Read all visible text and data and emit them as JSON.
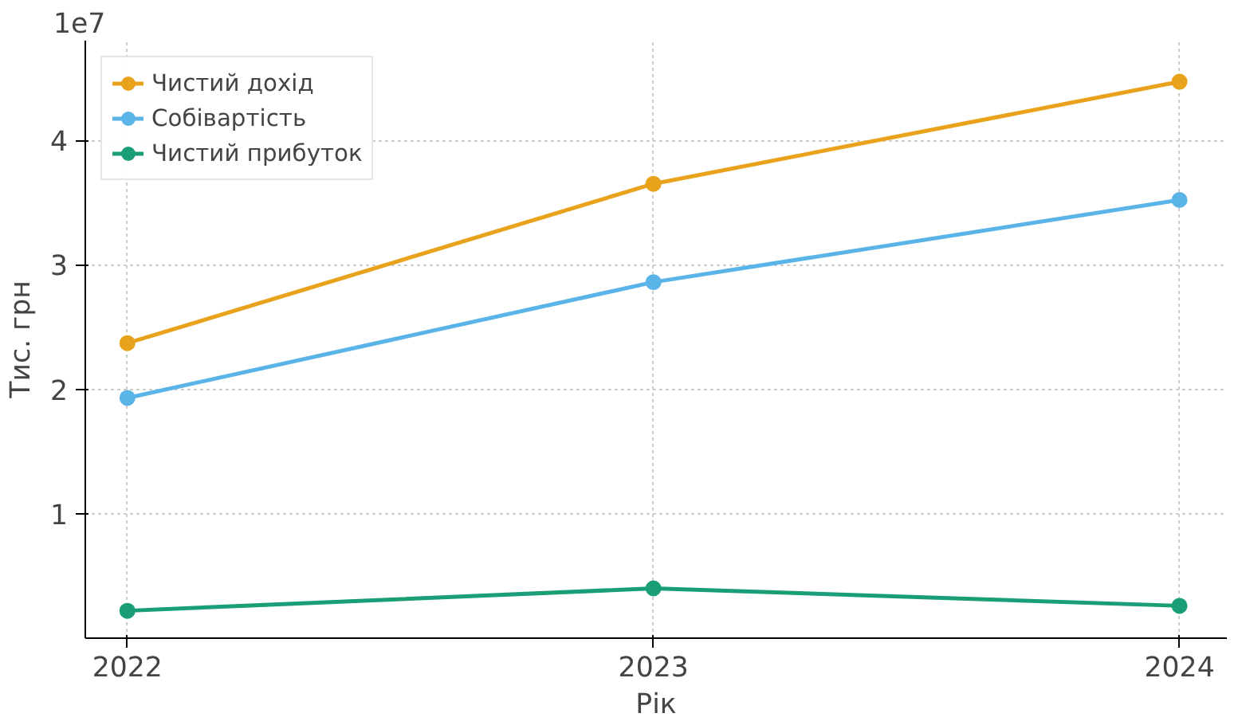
{
  "chart_data": {
    "type": "line",
    "xlabel": "Рік",
    "ylabel": "Тис. грн",
    "x": [
      2022,
      2023,
      2024
    ],
    "series": [
      {
        "name": "Чистий дохід",
        "color": "#e8a21c",
        "values": [
          2.37,
          3.65,
          4.47
        ]
      },
      {
        "name": "Собівартість",
        "color": "#5ab4e8",
        "values": [
          1.93,
          2.86,
          3.52
        ]
      },
      {
        "name": "Чистий прибуток",
        "color": "#1a9e77",
        "values": [
          0.22,
          0.4,
          0.26
        ]
      }
    ],
    "xlim": [
      2021.92,
      2024.09
    ],
    "xticks": [
      2022,
      2023,
      2024
    ],
    "ylim": [
      0,
      4.8
    ],
    "yticks": [
      1,
      2,
      3,
      4
    ],
    "annotations": [
      "1e7"
    ],
    "grid": true,
    "legend": "top left",
    "marker": "circle",
    "line_style": "solid"
  }
}
